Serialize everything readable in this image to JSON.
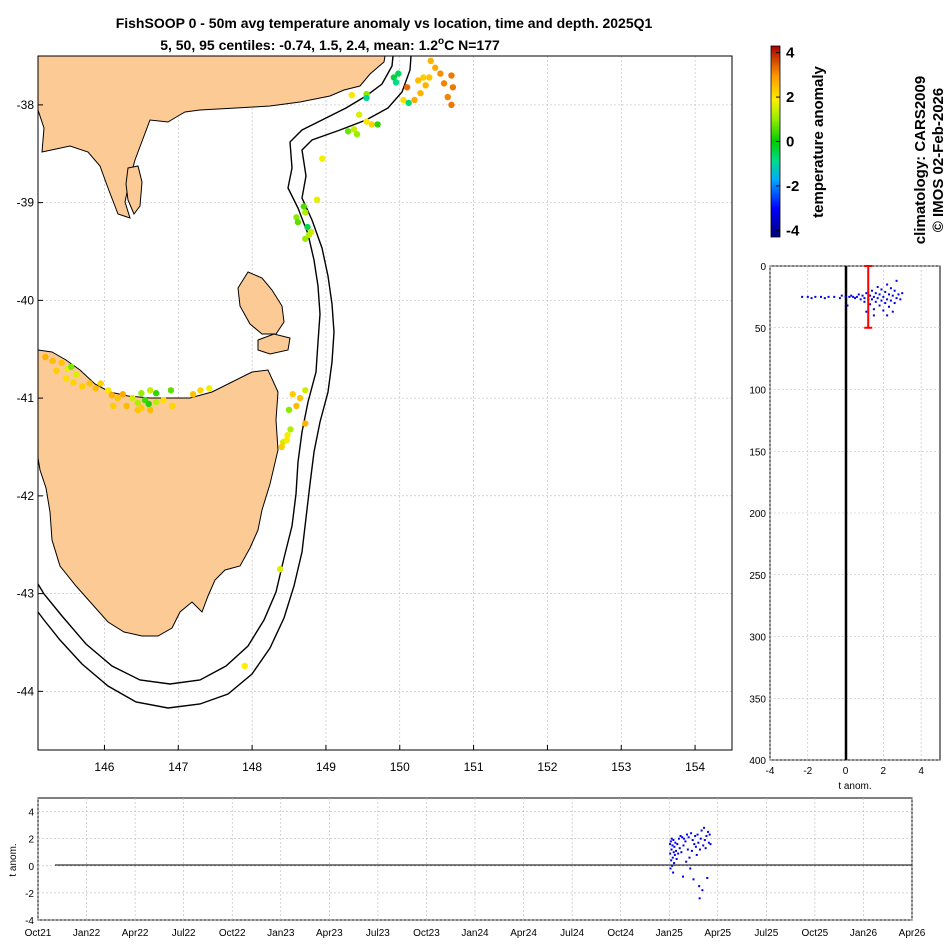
{
  "title_line1": "FishSOOP 0 - 50m avg temperature anomaly vs location, time and depth. 2025Q1",
  "title_line2_prefix": "5, 50, 95 centiles: -0.74, 1.5, 2.4, mean: 1.2",
  "title_line2_unit_sup": "o",
  "title_line2_suffix": "C N=177",
  "side_text_1": "climatology: CARS2009",
  "side_text_2": "© IMOS 02-Feb-2026",
  "colors": {
    "land": "#fcca94",
    "profile_points": "#0000ee",
    "mean_bar": "#ff0000",
    "zero_line": "#000000"
  },
  "chart_data": [
    {
      "type": "scatter",
      "name": "map",
      "xlabel": "longitude",
      "ylabel": "latitude",
      "xlim": [
        145.1,
        154.5
      ],
      "ylim": [
        -44.6,
        -37.5
      ],
      "xticks": [
        "146",
        "147",
        "148",
        "149",
        "150",
        "151",
        "152",
        "153",
        "154"
      ],
      "yticks": [
        "-38",
        "-39",
        "-40",
        "-41",
        "-42",
        "-43",
        "-44"
      ],
      "color_by": "temperature anomaly",
      "points": [
        {
          "lon": 150.42,
          "lat": -37.55,
          "v": 2.6
        },
        {
          "lon": 150.48,
          "lat": -37.62,
          "v": 2.7
        },
        {
          "lon": 150.55,
          "lat": -37.68,
          "v": 3.0
        },
        {
          "lon": 150.4,
          "lat": -37.72,
          "v": 2.4
        },
        {
          "lon": 150.6,
          "lat": -37.78,
          "v": 3.1
        },
        {
          "lon": 150.7,
          "lat": -37.7,
          "v": 3.2
        },
        {
          "lon": 150.72,
          "lat": -37.82,
          "v": 3.2
        },
        {
          "lon": 150.65,
          "lat": -37.92,
          "v": 3.1
        },
        {
          "lon": 150.7,
          "lat": -38.0,
          "v": 3.2
        },
        {
          "lon": 150.32,
          "lat": -37.72,
          "v": 2.3
        },
        {
          "lon": 150.25,
          "lat": -37.75,
          "v": 2.5
        },
        {
          "lon": 150.28,
          "lat": -37.88,
          "v": 2.6
        },
        {
          "lon": 150.2,
          "lat": -37.95,
          "v": 2.7
        },
        {
          "lon": 150.35,
          "lat": -37.8,
          "v": 2.6
        },
        {
          "lon": 150.1,
          "lat": -37.82,
          "v": 3.3
        },
        {
          "lon": 150.05,
          "lat": -37.95,
          "v": 2.1
        },
        {
          "lon": 149.92,
          "lat": -37.72,
          "v": -0.4
        },
        {
          "lon": 149.98,
          "lat": -37.68,
          "v": -0.6
        },
        {
          "lon": 149.95,
          "lat": -37.77,
          "v": -0.9
        },
        {
          "lon": 150.12,
          "lat": -37.98,
          "v": -0.8
        },
        {
          "lon": 149.55,
          "lat": -37.89,
          "v": 0.9
        },
        {
          "lon": 149.55,
          "lat": -37.93,
          "v": -1.0
        },
        {
          "lon": 149.35,
          "lat": -37.9,
          "v": 2.0
        },
        {
          "lon": 149.45,
          "lat": -38.1,
          "v": 1.6
        },
        {
          "lon": 149.55,
          "lat": -38.17,
          "v": 2.0
        },
        {
          "lon": 149.62,
          "lat": -38.2,
          "v": 2.2
        },
        {
          "lon": 149.7,
          "lat": -38.2,
          "v": 0.3
        },
        {
          "lon": 149.38,
          "lat": -38.25,
          "v": 1.4
        },
        {
          "lon": 149.3,
          "lat": -38.27,
          "v": 0.7
        },
        {
          "lon": 149.42,
          "lat": -38.3,
          "v": 1.0
        },
        {
          "lon": 148.95,
          "lat": -38.55,
          "v": 1.8
        },
        {
          "lon": 148.88,
          "lat": -38.97,
          "v": 1.7
        },
        {
          "lon": 148.7,
          "lat": -39.04,
          "v": 0.5
        },
        {
          "lon": 148.6,
          "lat": -39.15,
          "v": 0.9
        },
        {
          "lon": 148.62,
          "lat": -39.2,
          "v": 0.6
        },
        {
          "lon": 148.72,
          "lat": -39.1,
          "v": 1.2
        },
        {
          "lon": 148.75,
          "lat": -39.25,
          "v": -0.5
        },
        {
          "lon": 148.8,
          "lat": -39.3,
          "v": 1.5
        },
        {
          "lon": 148.77,
          "lat": -39.33,
          "v": 1.3
        },
        {
          "lon": 148.72,
          "lat": -39.37,
          "v": 1.0
        },
        {
          "lon": 145.2,
          "lat": -40.58,
          "v": 2.6
        },
        {
          "lon": 145.3,
          "lat": -40.62,
          "v": 2.5
        },
        {
          "lon": 145.42,
          "lat": -40.64,
          "v": 2.4
        },
        {
          "lon": 145.35,
          "lat": -40.72,
          "v": 2.3
        },
        {
          "lon": 145.5,
          "lat": -40.7,
          "v": 1.7
        },
        {
          "lon": 145.55,
          "lat": -40.68,
          "v": 0.8
        },
        {
          "lon": 145.48,
          "lat": -40.8,
          "v": 2.1
        },
        {
          "lon": 145.58,
          "lat": -40.84,
          "v": 2.2
        },
        {
          "lon": 145.62,
          "lat": -40.76,
          "v": 1.6
        },
        {
          "lon": 145.7,
          "lat": -40.88,
          "v": 2.3
        },
        {
          "lon": 145.8,
          "lat": -40.85,
          "v": 2.4
        },
        {
          "lon": 145.88,
          "lat": -40.9,
          "v": 2.5
        },
        {
          "lon": 145.95,
          "lat": -40.85,
          "v": 2.2
        },
        {
          "lon": 146.05,
          "lat": -40.92,
          "v": 2.0
        },
        {
          "lon": 146.1,
          "lat": -40.97,
          "v": 2.6
        },
        {
          "lon": 146.18,
          "lat": -41.0,
          "v": 2.4
        },
        {
          "lon": 146.25,
          "lat": -40.96,
          "v": 2.7
        },
        {
          "lon": 146.12,
          "lat": -41.08,
          "v": 2.3
        },
        {
          "lon": 146.3,
          "lat": -41.08,
          "v": 2.5
        },
        {
          "lon": 146.38,
          "lat": -41.0,
          "v": 1.5
        },
        {
          "lon": 146.45,
          "lat": -41.05,
          "v": 1.2
        },
        {
          "lon": 146.5,
          "lat": -40.95,
          "v": 1.0
        },
        {
          "lon": 146.55,
          "lat": -41.02,
          "v": 0.4
        },
        {
          "lon": 146.6,
          "lat": -41.06,
          "v": 0.2
        },
        {
          "lon": 146.62,
          "lat": -40.92,
          "v": 1.4
        },
        {
          "lon": 146.7,
          "lat": -41.04,
          "v": 1.3
        },
        {
          "lon": 146.7,
          "lat": -40.95,
          "v": 0.3
        },
        {
          "lon": 146.45,
          "lat": -41.12,
          "v": 2.4
        },
        {
          "lon": 146.5,
          "lat": -41.1,
          "v": 2.3
        },
        {
          "lon": 146.62,
          "lat": -41.12,
          "v": 2.5
        },
        {
          "lon": 146.8,
          "lat": -41.02,
          "v": 2.1
        },
        {
          "lon": 146.92,
          "lat": -41.08,
          "v": 2.2
        },
        {
          "lon": 146.9,
          "lat": -40.92,
          "v": 0.6
        },
        {
          "lon": 147.2,
          "lat": -40.96,
          "v": 2.4
        },
        {
          "lon": 147.3,
          "lat": -40.92,
          "v": 2.2
        },
        {
          "lon": 147.42,
          "lat": -40.9,
          "v": 1.8
        },
        {
          "lon": 148.55,
          "lat": -40.96,
          "v": 2.3
        },
        {
          "lon": 148.72,
          "lat": -40.92,
          "v": 1.5
        },
        {
          "lon": 148.65,
          "lat": -41.0,
          "v": 2.4
        },
        {
          "lon": 148.6,
          "lat": -41.08,
          "v": 2.5
        },
        {
          "lon": 148.5,
          "lat": -41.12,
          "v": 0.9
        },
        {
          "lon": 148.72,
          "lat": -41.26,
          "v": 2.6
        },
        {
          "lon": 148.52,
          "lat": -41.32,
          "v": 1.2
        },
        {
          "lon": 148.48,
          "lat": -41.38,
          "v": 1.8
        },
        {
          "lon": 148.42,
          "lat": -41.45,
          "v": 1.5
        },
        {
          "lon": 148.47,
          "lat": -41.43,
          "v": 2.0
        },
        {
          "lon": 148.4,
          "lat": -41.5,
          "v": 2.3
        },
        {
          "lon": 148.38,
          "lat": -42.75,
          "v": 1.6
        },
        {
          "lon": 147.9,
          "lat": -43.74,
          "v": 1.9
        }
      ]
    },
    {
      "type": "scatter",
      "name": "depth-profile",
      "xlabel": "t anom.",
      "ylabel": "depth",
      "xlim": [
        -4,
        5
      ],
      "ylim": [
        0,
        400
      ],
      "xticks": [
        "-4",
        "-2",
        "0",
        "2",
        "4"
      ],
      "yticks": [
        "0",
        "50",
        "100",
        "150",
        "200",
        "250",
        "300",
        "350",
        "400"
      ],
      "mean": 1.2,
      "mean_range_depth": [
        0,
        50
      ],
      "points": [
        {
          "x": -2.3,
          "y": 25
        },
        {
          "x": -2.0,
          "y": 25
        },
        {
          "x": -1.8,
          "y": 26
        },
        {
          "x": -1.6,
          "y": 25
        },
        {
          "x": -1.3,
          "y": 25
        },
        {
          "x": -1.1,
          "y": 26
        },
        {
          "x": -0.9,
          "y": 25
        },
        {
          "x": -0.6,
          "y": 25
        },
        {
          "x": -0.3,
          "y": 26
        },
        {
          "x": -0.2,
          "y": 24
        },
        {
          "x": 0.0,
          "y": 25
        },
        {
          "x": 0.2,
          "y": 25
        },
        {
          "x": 0.3,
          "y": 24
        },
        {
          "x": 0.4,
          "y": 25
        },
        {
          "x": 0.5,
          "y": 26
        },
        {
          "x": 0.6,
          "y": 25
        },
        {
          "x": 0.7,
          "y": 23
        },
        {
          "x": 0.8,
          "y": 27
        },
        {
          "x": 0.9,
          "y": 24
        },
        {
          "x": 1.0,
          "y": 26
        },
        {
          "x": 1.0,
          "y": 29
        },
        {
          "x": 1.1,
          "y": 22
        },
        {
          "x": 1.2,
          "y": 27
        },
        {
          "x": 1.3,
          "y": 24
        },
        {
          "x": 1.3,
          "y": 31
        },
        {
          "x": 1.4,
          "y": 20
        },
        {
          "x": 1.4,
          "y": 27
        },
        {
          "x": 1.5,
          "y": 25
        },
        {
          "x": 1.5,
          "y": 35
        },
        {
          "x": 1.6,
          "y": 22
        },
        {
          "x": 1.6,
          "y": 29
        },
        {
          "x": 1.7,
          "y": 17
        },
        {
          "x": 1.7,
          "y": 26
        },
        {
          "x": 1.8,
          "y": 32
        },
        {
          "x": 1.8,
          "y": 23
        },
        {
          "x": 1.9,
          "y": 28
        },
        {
          "x": 1.9,
          "y": 19
        },
        {
          "x": 2.0,
          "y": 25
        },
        {
          "x": 2.0,
          "y": 36
        },
        {
          "x": 2.1,
          "y": 21
        },
        {
          "x": 2.1,
          "y": 30
        },
        {
          "x": 2.2,
          "y": 15
        },
        {
          "x": 2.2,
          "y": 27
        },
        {
          "x": 2.3,
          "y": 33
        },
        {
          "x": 2.3,
          "y": 23
        },
        {
          "x": 2.4,
          "y": 18
        },
        {
          "x": 2.4,
          "y": 28
        },
        {
          "x": 2.5,
          "y": 24
        },
        {
          "x": 2.5,
          "y": 37
        },
        {
          "x": 2.6,
          "y": 20
        },
        {
          "x": 2.6,
          "y": 30
        },
        {
          "x": 2.7,
          "y": 12
        },
        {
          "x": 2.7,
          "y": 26
        },
        {
          "x": 2.8,
          "y": 23
        },
        {
          "x": 2.9,
          "y": 27
        },
        {
          "x": 3.0,
          "y": 22
        },
        {
          "x": 0.1,
          "y": 32
        },
        {
          "x": 1.1,
          "y": 37
        },
        {
          "x": 1.5,
          "y": 40
        },
        {
          "x": 2.2,
          "y": 40
        }
      ]
    },
    {
      "type": "scatter",
      "name": "time-series",
      "xlabel": "",
      "ylabel": "t anom.",
      "xlim": [
        "Oct21",
        "Apr26"
      ],
      "ylim": [
        -4,
        5
      ],
      "xticks": [
        "Oct21",
        "Jan22",
        "Apr22",
        "Jul22",
        "Oct22",
        "Jan23",
        "Apr23",
        "Jul23",
        "Oct23",
        "Jan24",
        "Apr24",
        "Jul24",
        "Oct24",
        "Jan25",
        "Apr25",
        "Jul25",
        "Oct25",
        "Jan26",
        "Apr26"
      ],
      "yticks": [
        "-4",
        "-2",
        "0",
        "2",
        "4"
      ],
      "points": [
        {
          "m": 39.05,
          "y": 1.6
        },
        {
          "m": 39.06,
          "y": 0.9
        },
        {
          "m": 39.08,
          "y": -0.2
        },
        {
          "m": 39.1,
          "y": 1.8
        },
        {
          "m": 39.12,
          "y": 0.4
        },
        {
          "m": 39.14,
          "y": 1.2
        },
        {
          "m": 39.16,
          "y": 2.0
        },
        {
          "m": 39.18,
          "y": 0.0
        },
        {
          "m": 39.2,
          "y": 1.5
        },
        {
          "m": 39.22,
          "y": 0.6
        },
        {
          "m": 39.24,
          "y": -0.5
        },
        {
          "m": 39.26,
          "y": 1.9
        },
        {
          "m": 39.28,
          "y": 1.0
        },
        {
          "m": 39.3,
          "y": 0.2
        },
        {
          "m": 39.32,
          "y": 1.4
        },
        {
          "m": 39.35,
          "y": 0.8
        },
        {
          "m": 39.38,
          "y": 1.7
        },
        {
          "m": 39.42,
          "y": 1.1
        },
        {
          "m": 39.46,
          "y": 0.5
        },
        {
          "m": 39.5,
          "y": 1.6
        },
        {
          "m": 39.55,
          "y": 0.9
        },
        {
          "m": 39.6,
          "y": 2.0
        },
        {
          "m": 39.65,
          "y": 1.3
        },
        {
          "m": 39.7,
          "y": 2.2
        },
        {
          "m": 39.75,
          "y": 1.0
        },
        {
          "m": 39.8,
          "y": 2.1
        },
        {
          "m": 39.85,
          "y": -0.8
        },
        {
          "m": 39.88,
          "y": 1.5
        },
        {
          "m": 39.92,
          "y": 2.0
        },
        {
          "m": 40.0,
          "y": 1.8
        },
        {
          "m": 40.05,
          "y": 0.3
        },
        {
          "m": 40.1,
          "y": 2.3
        },
        {
          "m": 40.15,
          "y": 1.2
        },
        {
          "m": 40.2,
          "y": 2.1
        },
        {
          "m": 40.25,
          "y": 0.6
        },
        {
          "m": 40.3,
          "y": -0.2
        },
        {
          "m": 40.35,
          "y": 2.4
        },
        {
          "m": 40.4,
          "y": 1.1
        },
        {
          "m": 40.45,
          "y": 1.9
        },
        {
          "m": 40.5,
          "y": -1.0
        },
        {
          "m": 40.55,
          "y": 1.6
        },
        {
          "m": 40.6,
          "y": 2.2
        },
        {
          "m": 40.65,
          "y": 1.4
        },
        {
          "m": 40.7,
          "y": 0.8
        },
        {
          "m": 40.75,
          "y": 2.3
        },
        {
          "m": 40.8,
          "y": 1.7
        },
        {
          "m": 40.85,
          "y": -1.5
        },
        {
          "m": 40.88,
          "y": -2.4
        },
        {
          "m": 40.9,
          "y": 1.2
        },
        {
          "m": 40.95,
          "y": 2.0
        },
        {
          "m": 41.0,
          "y": 2.6
        },
        {
          "m": 41.05,
          "y": -1.8
        },
        {
          "m": 41.1,
          "y": 1.5
        },
        {
          "m": 41.15,
          "y": 2.8
        },
        {
          "m": 41.2,
          "y": 1.9
        },
        {
          "m": 41.25,
          "y": 1.3
        },
        {
          "m": 41.3,
          "y": 2.2
        },
        {
          "m": 41.35,
          "y": -0.9
        },
        {
          "m": 41.4,
          "y": 2.5
        },
        {
          "m": 41.45,
          "y": 1.7
        },
        {
          "m": 41.5,
          "y": 2.3
        },
        {
          "m": 41.55,
          "y": 1.6
        }
      ]
    },
    {
      "type": "heatmap",
      "name": "colorbar",
      "label": "temperature anomaly",
      "range": [
        -4.3,
        4.3
      ],
      "ticks": [
        "-4",
        "-2",
        "0",
        "2",
        "4"
      ]
    }
  ]
}
